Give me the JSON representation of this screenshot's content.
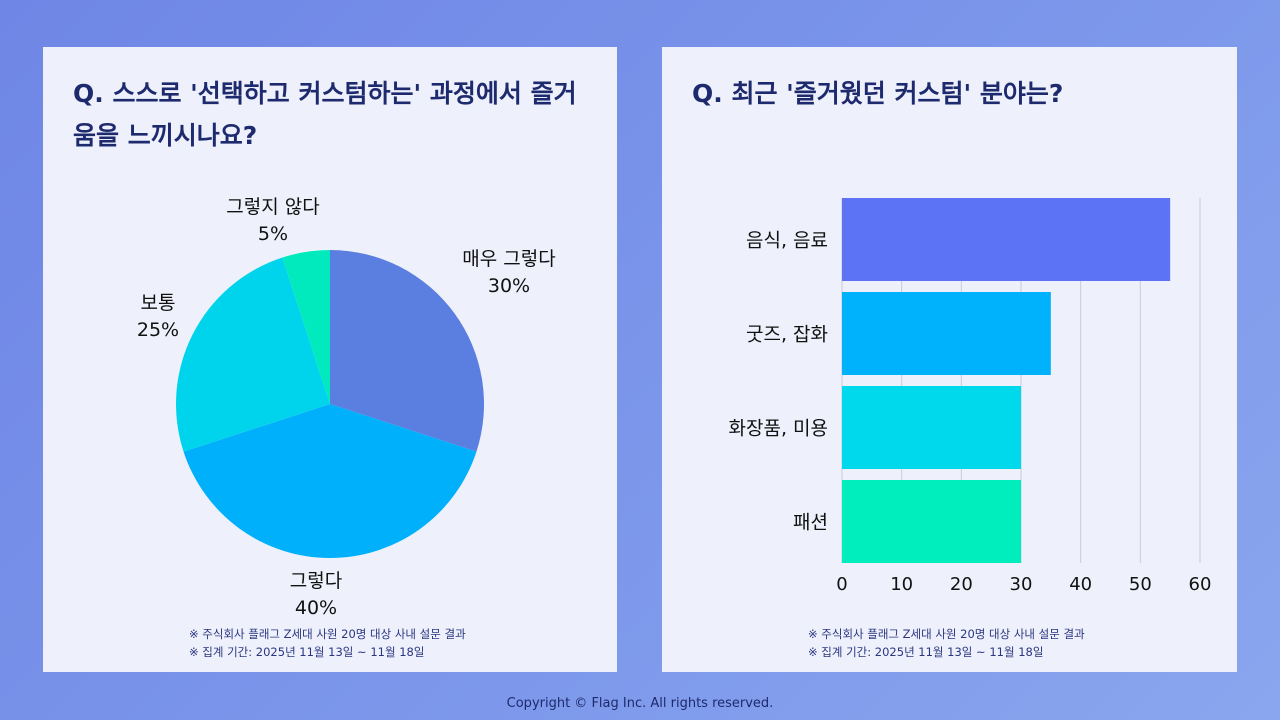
{
  "copyright": "Copyright © Flag Inc. All rights reserved.",
  "chart_data": [
    {
      "type": "pie",
      "title": "Q. 스스로 '선택하고 커스텀하는' 과정에서 즐거움을 느끼시나요?",
      "labels": [
        "매우 그렇다",
        "그렇다",
        "보통",
        "그렇지 않다"
      ],
      "values": [
        30,
        40,
        25,
        5
      ],
      "value_labels": [
        "30%",
        "40%",
        "25%",
        "5%"
      ],
      "colors": [
        "#5b7fe0",
        "#00b0fa",
        "#00d4ec",
        "#00eabd"
      ],
      "notes": [
        "※ 주식회사 플래그 Z세대 사원 20명 대상 사내 설문 결과",
        "※ 집계 기간: 2025년 11월 13일 ~ 11월 18일"
      ]
    },
    {
      "type": "bar",
      "orientation": "horizontal",
      "title": "Q. 최근 '즐거웠던 커스텀' 분야는?",
      "categories": [
        "음식, 음료",
        "굿즈, 잡화",
        "화장품, 미용",
        "패션"
      ],
      "values": [
        55,
        35,
        30,
        30
      ],
      "colors": [
        "#5d73f5",
        "#00b2fb",
        "#00d8ec",
        "#00edbd"
      ],
      "xlim": [
        0,
        60
      ],
      "xticks": [
        "0",
        "10",
        "20",
        "30",
        "40",
        "50",
        "60"
      ],
      "grid": true,
      "notes": [
        "※ 주식회사 플래그 Z세대 사원 20명 대상 사내 설문 결과",
        "※ 집계 기간: 2025년 11월 13일 ~ 11월 18일"
      ]
    }
  ]
}
